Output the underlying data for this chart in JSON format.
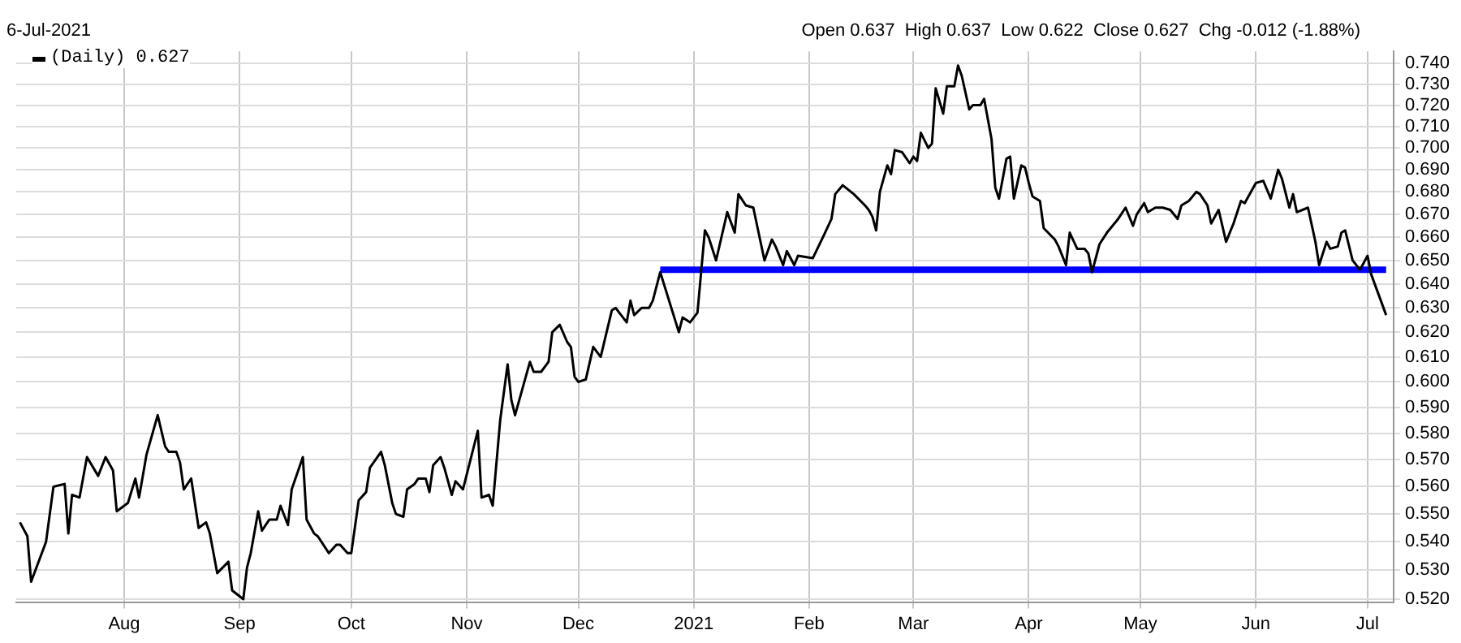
{
  "chart_data": {
    "type": "line",
    "subtitle": "6-Jul-2021",
    "annotations": [
      "Open 0.637  High 0.637  Low 0.622  Close 0.627  Chg -0.012 (-1.88%)"
    ],
    "log": "y",
    "grid": true,
    "legend": "top left",
    "marker": "none",
    "line_style": "solid",
    "xlim": [
      "2020-07-03",
      "2021-07-08"
    ],
    "xticks": [
      {
        "value": "2020-08-01",
        "label": "Aug"
      },
      {
        "value": "2020-09-01",
        "label": "Sep"
      },
      {
        "value": "2020-10-01",
        "label": "Oct"
      },
      {
        "value": "2020-11-01",
        "label": "Nov"
      },
      {
        "value": "2020-12-01",
        "label": "Dec"
      },
      {
        "value": "2021-01-01",
        "label": "2021"
      },
      {
        "value": "2021-02-01",
        "label": "Feb"
      },
      {
        "value": "2021-03-01",
        "label": "Mar"
      },
      {
        "value": "2021-04-01",
        "label": "Apr"
      },
      {
        "value": "2021-05-01",
        "label": "May"
      },
      {
        "value": "2021-06-01",
        "label": "Jun"
      },
      {
        "value": "2021-07-01",
        "label": "Jul"
      }
    ],
    "ylim": [
      0.519,
      0.746
    ],
    "yticks": [
      {
        "value": 0.52,
        "label": "0.520"
      },
      {
        "value": 0.53,
        "label": "0.530"
      },
      {
        "value": 0.54,
        "label": "0.540"
      },
      {
        "value": 0.55,
        "label": "0.550"
      },
      {
        "value": 0.56,
        "label": "0.560"
      },
      {
        "value": 0.57,
        "label": "0.570"
      },
      {
        "value": 0.58,
        "label": "0.580"
      },
      {
        "value": 0.59,
        "label": "0.590"
      },
      {
        "value": 0.6,
        "label": "0.600"
      },
      {
        "value": 0.61,
        "label": "0.610"
      },
      {
        "value": 0.62,
        "label": "0.620"
      },
      {
        "value": 0.63,
        "label": "0.630"
      },
      {
        "value": 0.64,
        "label": "0.640"
      },
      {
        "value": 0.65,
        "label": "0.650"
      },
      {
        "value": 0.66,
        "label": "0.660"
      },
      {
        "value": 0.67,
        "label": "0.670"
      },
      {
        "value": 0.68,
        "label": "0.680"
      },
      {
        "value": 0.69,
        "label": "0.690"
      },
      {
        "value": 0.7,
        "label": "0.700"
      },
      {
        "value": 0.71,
        "label": "0.710"
      },
      {
        "value": 0.72,
        "label": "0.720"
      },
      {
        "value": 0.73,
        "label": "0.730"
      },
      {
        "value": 0.74,
        "label": "0.740"
      }
    ],
    "series": [
      {
        "name": "(Daily) 0.627",
        "color": "#000000",
        "x": [
          "2020-07-04",
          "2020-07-06",
          "2020-07-07",
          "2020-07-11",
          "2020-07-13",
          "2020-07-16",
          "2020-07-17",
          "2020-07-18",
          "2020-07-20",
          "2020-07-22",
          "2020-07-25",
          "2020-07-27",
          "2020-07-29",
          "2020-07-30",
          "2020-08-02",
          "2020-08-04",
          "2020-08-05",
          "2020-08-07",
          "2020-08-10",
          "2020-08-12",
          "2020-08-13",
          "2020-08-15",
          "2020-08-16",
          "2020-08-17",
          "2020-08-19",
          "2020-08-21",
          "2020-08-23",
          "2020-08-24",
          "2020-08-26",
          "2020-08-29",
          "2020-08-30",
          "2020-09-02",
          "2020-09-03",
          "2020-09-04",
          "2020-09-06",
          "2020-09-07",
          "2020-09-09",
          "2020-09-11",
          "2020-09-12",
          "2020-09-14",
          "2020-09-15",
          "2020-09-18",
          "2020-09-19",
          "2020-09-21",
          "2020-09-22",
          "2020-09-25",
          "2020-09-27",
          "2020-09-28",
          "2020-09-30",
          "2020-10-01",
          "2020-10-03",
          "2020-10-05",
          "2020-10-06",
          "2020-10-09",
          "2020-10-10",
          "2020-10-12",
          "2020-10-13",
          "2020-10-15",
          "2020-10-16",
          "2020-10-18",
          "2020-10-19",
          "2020-10-21",
          "2020-10-22",
          "2020-10-23",
          "2020-10-25",
          "2020-10-26",
          "2020-10-28",
          "2020-10-29",
          "2020-10-31",
          "2020-11-04",
          "2020-11-05",
          "2020-11-07",
          "2020-11-08",
          "2020-11-10",
          "2020-11-12",
          "2020-11-13",
          "2020-11-14",
          "2020-11-18",
          "2020-11-19",
          "2020-11-21",
          "2020-11-23",
          "2020-11-24",
          "2020-11-26",
          "2020-11-28",
          "2020-11-29",
          "2020-11-30",
          "2020-12-01",
          "2020-12-03",
          "2020-12-05",
          "2020-12-07",
          "2020-12-10",
          "2020-12-11",
          "2020-12-14",
          "2020-12-15",
          "2020-12-16",
          "2020-12-18",
          "2020-12-20",
          "2020-12-21",
          "2020-12-23",
          "2020-12-28",
          "2020-12-29",
          "2020-12-31",
          "2021-01-02",
          "2021-01-04",
          "2021-01-05",
          "2021-01-07",
          "2021-01-10",
          "2021-01-12",
          "2021-01-13",
          "2021-01-15",
          "2021-01-17",
          "2021-01-20",
          "2021-01-22",
          "2021-01-23",
          "2021-01-25",
          "2021-01-26",
          "2021-01-28",
          "2021-01-29",
          "2021-02-02",
          "2021-02-05",
          "2021-02-07",
          "2021-02-08",
          "2021-02-10",
          "2021-02-13",
          "2021-02-16",
          "2021-02-17",
          "2021-02-18",
          "2021-02-19",
          "2021-02-20",
          "2021-02-22",
          "2021-02-23",
          "2021-02-24",
          "2021-02-26",
          "2021-02-28",
          "2021-03-01",
          "2021-03-02",
          "2021-03-03",
          "2021-03-05",
          "2021-03-06",
          "2021-03-07",
          "2021-03-09",
          "2021-03-10",
          "2021-03-12",
          "2021-03-13",
          "2021-03-14",
          "2021-03-16",
          "2021-03-17",
          "2021-03-19",
          "2021-03-20",
          "2021-03-22",
          "2021-03-23",
          "2021-03-24",
          "2021-03-26",
          "2021-03-27",
          "2021-03-28",
          "2021-03-30",
          "2021-03-31",
          "2021-04-01",
          "2021-04-02",
          "2021-04-04",
          "2021-04-05",
          "2021-04-08",
          "2021-04-09",
          "2021-04-11",
          "2021-04-12",
          "2021-04-14",
          "2021-04-16",
          "2021-04-17",
          "2021-04-18",
          "2021-04-20",
          "2021-04-22",
          "2021-04-25",
          "2021-04-27",
          "2021-04-29",
          "2021-04-30",
          "2021-05-02",
          "2021-05-03",
          "2021-05-05",
          "2021-05-07",
          "2021-05-09",
          "2021-05-11",
          "2021-05-12",
          "2021-05-14",
          "2021-05-16",
          "2021-05-17",
          "2021-05-19",
          "2021-05-20",
          "2021-05-22",
          "2021-05-24",
          "2021-05-26",
          "2021-05-28",
          "2021-05-29",
          "2021-06-01",
          "2021-06-03",
          "2021-06-05",
          "2021-06-07",
          "2021-06-08",
          "2021-06-10",
          "2021-06-11",
          "2021-06-12",
          "2021-06-15",
          "2021-06-17",
          "2021-06-18",
          "2021-06-20",
          "2021-06-21",
          "2021-06-23",
          "2021-06-24",
          "2021-06-25",
          "2021-06-27",
          "2021-06-29",
          "2021-07-01",
          "2021-07-02",
          "2021-07-06"
        ],
        "values": [
          0.547,
          0.542,
          0.526,
          0.54,
          0.56,
          0.561,
          0.543,
          0.557,
          0.556,
          0.571,
          0.564,
          0.571,
          0.566,
          0.551,
          0.554,
          0.563,
          0.556,
          0.572,
          0.587,
          0.575,
          0.573,
          0.573,
          0.569,
          0.559,
          0.563,
          0.545,
          0.547,
          0.543,
          0.529,
          0.533,
          0.523,
          0.52,
          0.531,
          0.536,
          0.551,
          0.544,
          0.548,
          0.548,
          0.553,
          0.546,
          0.559,
          0.571,
          0.548,
          0.543,
          0.542,
          0.536,
          0.539,
          0.539,
          0.536,
          0.536,
          0.555,
          0.558,
          0.567,
          0.573,
          0.568,
          0.554,
          0.55,
          0.549,
          0.559,
          0.561,
          0.563,
          0.563,
          0.558,
          0.568,
          0.571,
          0.567,
          0.557,
          0.562,
          0.559,
          0.581,
          0.556,
          0.557,
          0.553,
          0.585,
          0.607,
          0.593,
          0.587,
          0.608,
          0.604,
          0.604,
          0.608,
          0.62,
          0.623,
          0.616,
          0.614,
          0.602,
          0.6,
          0.601,
          0.614,
          0.61,
          0.629,
          0.63,
          0.624,
          0.633,
          0.627,
          0.63,
          0.63,
          0.633,
          0.645,
          0.62,
          0.626,
          0.624,
          0.628,
          0.663,
          0.66,
          0.65,
          0.671,
          0.662,
          0.679,
          0.674,
          0.673,
          0.65,
          0.659,
          0.656,
          0.648,
          0.654,
          0.648,
          0.652,
          0.651,
          0.661,
          0.668,
          0.679,
          0.683,
          0.679,
          0.674,
          0.672,
          0.669,
          0.663,
          0.68,
          0.692,
          0.688,
          0.699,
          0.698,
          0.693,
          0.696,
          0.694,
          0.707,
          0.7,
          0.702,
          0.728,
          0.716,
          0.729,
          0.729,
          0.739,
          0.734,
          0.718,
          0.72,
          0.72,
          0.723,
          0.704,
          0.682,
          0.677,
          0.695,
          0.696,
          0.677,
          0.692,
          0.691,
          0.684,
          0.678,
          0.676,
          0.664,
          0.659,
          0.656,
          0.648,
          0.662,
          0.655,
          0.655,
          0.653,
          0.645,
          0.657,
          0.662,
          0.668,
          0.673,
          0.665,
          0.67,
          0.675,
          0.671,
          0.673,
          0.673,
          0.672,
          0.668,
          0.674,
          0.676,
          0.68,
          0.679,
          0.674,
          0.666,
          0.672,
          0.658,
          0.666,
          0.676,
          0.675,
          0.684,
          0.685,
          0.677,
          0.69,
          0.686,
          0.673,
          0.679,
          0.671,
          0.673,
          0.658,
          0.648,
          0.658,
          0.655,
          0.656,
          0.662,
          0.663,
          0.65,
          0.646,
          0.652,
          0.644,
          0.627
        ]
      },
      {
        "color": "#0000ff",
        "x": [
          "2020-12-23",
          "2021-07-06"
        ],
        "values": [
          0.646,
          0.646
        ]
      }
    ]
  }
}
